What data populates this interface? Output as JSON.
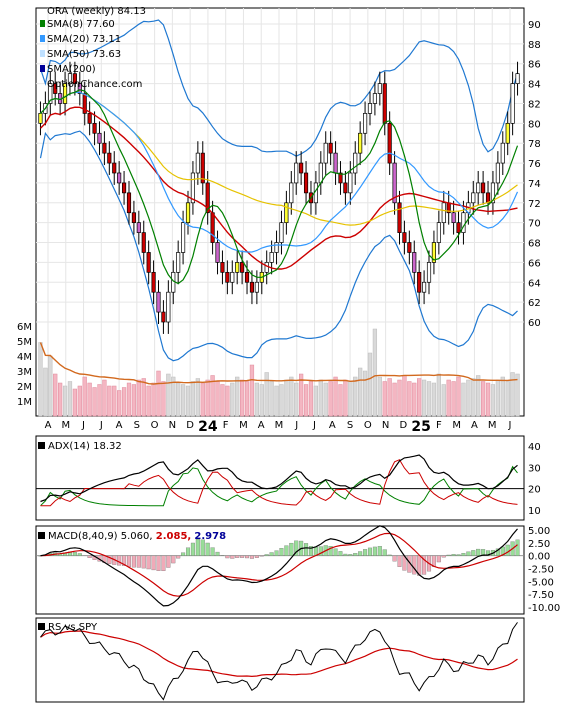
{
  "chart_data": [
    {
      "type": "candlestick",
      "panel": "price",
      "title": "ORA (weekly) 84.13",
      "watermark": "OptionChance.com",
      "legend": [
        {
          "label": "SMA(8) 77.60",
          "color": "#008000"
        },
        {
          "label": "SMA(20) 73.11",
          "color": "#3399ff"
        },
        {
          "label": "SMA(50) 73.63",
          "color": "#cc9900"
        },
        {
          "label": "SMA(200)",
          "color": "#000099"
        }
      ],
      "ylim": [
        58,
        91
      ],
      "yticks": [
        "90",
        "88",
        "86",
        "84",
        "82",
        "80",
        "78",
        "76",
        "74",
        "72",
        "70",
        "68",
        "66",
        "64",
        "62",
        "60"
      ],
      "xticks": [
        "A",
        "M",
        "J",
        "J",
        "A",
        "S",
        "O",
        "N",
        "D",
        "24",
        "F",
        "M",
        "A",
        "M",
        "J",
        "J",
        "A",
        "S",
        "O",
        "N",
        "D",
        "25",
        "F",
        "M",
        "A",
        "M",
        "J"
      ],
      "close_series": [
        81,
        82,
        84,
        83,
        82,
        84,
        85,
        84,
        83,
        81,
        80,
        79,
        78,
        77,
        76,
        75,
        74,
        73,
        71,
        70,
        69,
        67,
        65,
        63,
        61,
        60,
        63,
        65,
        67,
        70,
        72,
        75,
        77,
        74,
        71,
        68,
        66,
        65,
        64,
        65,
        66,
        65,
        64,
        63,
        64,
        65,
        66,
        67,
        68,
        70,
        72,
        74,
        76,
        75,
        73,
        72,
        74,
        76,
        78,
        77,
        75,
        74,
        73,
        75,
        77,
        79,
        81,
        82,
        83,
        84,
        80,
        76,
        72,
        69,
        68,
        67,
        65,
        63,
        64,
        66,
        68,
        70,
        72,
        71,
        70,
        69,
        71,
        72,
        73,
        74,
        73,
        72,
        74,
        76,
        78,
        80,
        84,
        85
      ],
      "bollinger_note": "upper and lower bands shown in blue"
    },
    {
      "type": "bar",
      "panel": "volume",
      "yticks": [
        "6M",
        "5M",
        "4M",
        "3M",
        "2M",
        "1M"
      ],
      "ylim": [
        0,
        6.6
      ],
      "values": [
        4.9,
        3.2,
        4.0,
        2.8,
        2.2,
        2.0,
        2.3,
        1.8,
        2.0,
        2.6,
        2.2,
        1.9,
        2.1,
        2.4,
        2.0,
        2.0,
        1.7,
        1.9,
        2.2,
        2.1,
        2.4,
        2.5,
        2.0,
        2.2,
        3.0,
        2.3,
        2.8,
        2.6,
        2.2,
        2.1,
        2.0,
        2.3,
        2.5,
        2.2,
        2.4,
        2.7,
        2.3,
        2.1,
        2.0,
        2.2,
        2.6,
        2.4,
        2.3,
        3.4,
        2.2,
        2.1,
        2.9,
        2.3,
        2.0,
        2.1,
        2.4,
        2.6,
        2.2,
        2.8,
        2.1,
        2.3,
        2.0,
        2.4,
        2.2,
        2.3,
        2.6,
        2.1,
        2.4,
        2.3,
        2.6,
        3.2,
        3.0,
        4.2,
        5.8,
        2.6,
        2.3,
        2.5,
        2.2,
        2.4,
        2.7,
        2.3,
        2.2,
        2.5,
        2.4,
        2.3,
        2.2,
        2.8,
        2.1,
        2.4,
        2.3,
        2.6,
        2.2,
        2.4,
        2.5,
        2.7,
        2.3,
        2.2,
        2.1,
        2.4,
        2.6,
        2.3,
        2.9,
        2.8
      ]
    },
    {
      "type": "line",
      "panel": "adx",
      "title": "ADX(14) 18.32",
      "yticks": [
        "40",
        "30",
        "20",
        "10"
      ],
      "ylim": [
        5,
        45
      ]
    },
    {
      "type": "line",
      "panel": "macd",
      "title": "MACD(8,40,9) 5.060,",
      "values_labels": [
        "2.085,",
        "2.978"
      ],
      "values_colors": [
        "#cc0000",
        "#000099"
      ],
      "yticks": [
        "5.00",
        "2.50",
        "0.00",
        "-2.50",
        "-5.00",
        "-7.50",
        "-10.00"
      ],
      "ylim": [
        -11,
        6
      ]
    },
    {
      "type": "line",
      "panel": "rs",
      "title": "RS vs SPY"
    }
  ]
}
